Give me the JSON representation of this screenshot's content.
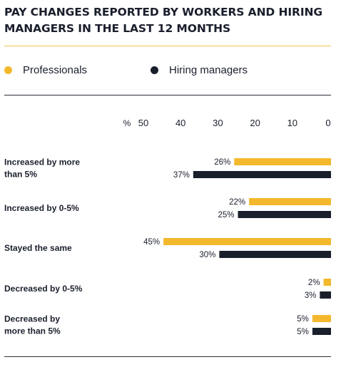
{
  "title_line1": "PAY CHANGES REPORTED BY WORKERS AND HIRING",
  "title_line2": "MANAGERS IN THE LAST 12 MONTHS",
  "colors": {
    "professionals": "#f3b82c",
    "hiring_managers": "#1a1f2c",
    "text": "#1a1f2c"
  },
  "chart_data": {
    "type": "bar",
    "orientation": "horizontal",
    "axis_reversed": true,
    "axis_unit": "%",
    "ticks": [
      50,
      40,
      30,
      20,
      10,
      0
    ],
    "xlim": [
      0,
      50
    ],
    "legend_position": "top",
    "categories": [
      [
        "Increased by more",
        "than 5%"
      ],
      [
        "Increased by 0-5%"
      ],
      [
        "Stayed the same"
      ],
      [
        "Decreased by 0-5%"
      ],
      [
        "Decreased by",
        "more than 5%"
      ]
    ],
    "series": [
      {
        "name": "Professionals",
        "values": [
          26,
          22,
          45,
          2,
          5
        ],
        "labels": [
          "26%",
          "22%",
          "45%",
          "2%",
          "5%"
        ]
      },
      {
        "name": "Hiring managers",
        "values": [
          37,
          25,
          30,
          3,
          5
        ],
        "labels": [
          "37%",
          "25%",
          "30%",
          "3%",
          "5%"
        ]
      }
    ]
  }
}
